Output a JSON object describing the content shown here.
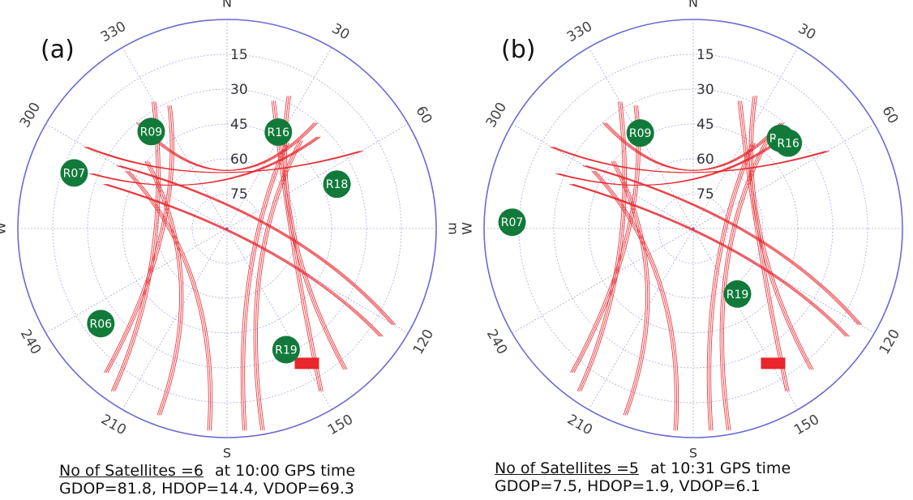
{
  "chart_data": [
    {
      "type": "scatter",
      "panel_label": "(a)",
      "plot": "polar skyplot",
      "rings": [
        15,
        30,
        45,
        60,
        75
      ],
      "compass": {
        "N": "N",
        "E": "m",
        "S": "S",
        "W": "W"
      },
      "azimuth_labels": [
        "30",
        "60",
        "120",
        "150",
        "210",
        "240",
        "300",
        "330"
      ],
      "satellites": [
        {
          "name": "R09",
          "azimuth": 322,
          "elevation": 37
        },
        {
          "name": "R16",
          "azimuth": 28,
          "elevation": 43
        },
        {
          "name": "R07",
          "azimuth": 290,
          "elevation": 20
        },
        {
          "name": "R18",
          "azimuth": 68,
          "elevation": 39
        },
        {
          "name": "R06",
          "azimuth": 233,
          "elevation": 22
        },
        {
          "name": "R19",
          "azimuth": 154,
          "elevation": 32
        }
      ],
      "caption": {
        "satellites_text": "No of Satellites =6",
        "time_text": "at 10:00 GPS time",
        "dop_text": "GDOP=81.8, HDOP=14.4, VDOP=69.3"
      },
      "colors": {
        "ring": "#6a6ad4",
        "grid": "#a9a9e6",
        "track": "#e8262b",
        "satellite": "#117a3a",
        "satellite_text": "#ffffff"
      }
    },
    {
      "type": "scatter",
      "panel_label": "(b)",
      "plot": "polar skyplot",
      "rings": [
        15,
        30,
        45,
        60,
        75
      ],
      "compass": {
        "N": "N",
        "E": "E",
        "S": "S",
        "W": "W"
      },
      "azimuth_labels": [
        "30",
        "60",
        "120",
        "150",
        "210",
        "240",
        "300",
        "330"
      ],
      "satellites": [
        {
          "name": "R09",
          "azimuth": 331,
          "elevation": 43
        },
        {
          "name": "R18",
          "azimuth": 44,
          "elevation": 36
        },
        {
          "name": "R16",
          "azimuth": 48,
          "elevation": 35
        },
        {
          "name": "R07",
          "azimuth": 272,
          "elevation": 12
        },
        {
          "name": "R19",
          "azimuth": 146,
          "elevation": 56
        }
      ],
      "caption": {
        "satellites_text": "No of Satellites =5",
        "time_text": "at 10:31 GPS time",
        "dop_text": "GDOP=7.5, HDOP=1.9, VDOP=6.1"
      },
      "colors": {
        "ring": "#6a6ad4",
        "grid": "#a9a9e6",
        "track": "#e8262b",
        "satellite": "#117a3a",
        "satellite_text": "#ffffff"
      }
    }
  ]
}
